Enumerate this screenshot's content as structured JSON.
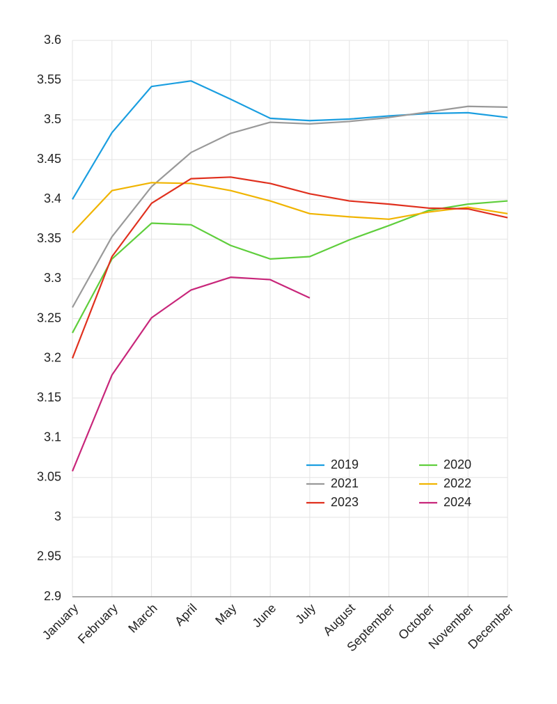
{
  "chart_data": {
    "type": "line",
    "categories": [
      "January",
      "February",
      "March",
      "April",
      "May",
      "June",
      "July",
      "August",
      "September",
      "October",
      "November",
      "December"
    ],
    "series": [
      {
        "name": "2019",
        "color": "#1a9ee0",
        "values": [
          3.4,
          3.484,
          3.542,
          3.549,
          3.526,
          3.502,
          3.499,
          3.501,
          3.505,
          3.508,
          3.509,
          3.503
        ]
      },
      {
        "name": "2020",
        "color": "#5fce3c",
        "values": [
          3.232,
          3.325,
          3.37,
          3.368,
          3.342,
          3.325,
          3.328,
          3.349,
          3.367,
          3.386,
          3.394,
          3.398
        ]
      },
      {
        "name": "2021",
        "color": "#999999",
        "values": [
          3.264,
          3.353,
          3.416,
          3.459,
          3.483,
          3.497,
          3.495,
          3.498,
          3.503,
          3.51,
          3.517,
          3.516
        ]
      },
      {
        "name": "2022",
        "color": "#f0b400",
        "values": [
          3.358,
          3.411,
          3.421,
          3.42,
          3.411,
          3.398,
          3.382,
          3.378,
          3.375,
          3.384,
          3.39,
          3.382
        ]
      },
      {
        "name": "2023",
        "color": "#e0301e",
        "values": [
          3.2,
          3.328,
          3.395,
          3.426,
          3.428,
          3.42,
          3.407,
          3.398,
          3.394,
          3.389,
          3.388,
          3.377
        ]
      },
      {
        "name": "2024",
        "color": "#c8267a",
        "values": [
          3.058,
          3.179,
          3.251,
          3.286,
          3.302,
          3.299,
          3.276,
          null,
          null,
          null,
          null,
          null
        ]
      }
    ],
    "ylim": [
      2.9,
      3.6
    ],
    "yticks": [
      2.9,
      2.95,
      3,
      3.05,
      3.1,
      3.15,
      3.2,
      3.25,
      3.3,
      3.35,
      3.4,
      3.45,
      3.5,
      3.55,
      3.6
    ],
    "grid": true
  }
}
